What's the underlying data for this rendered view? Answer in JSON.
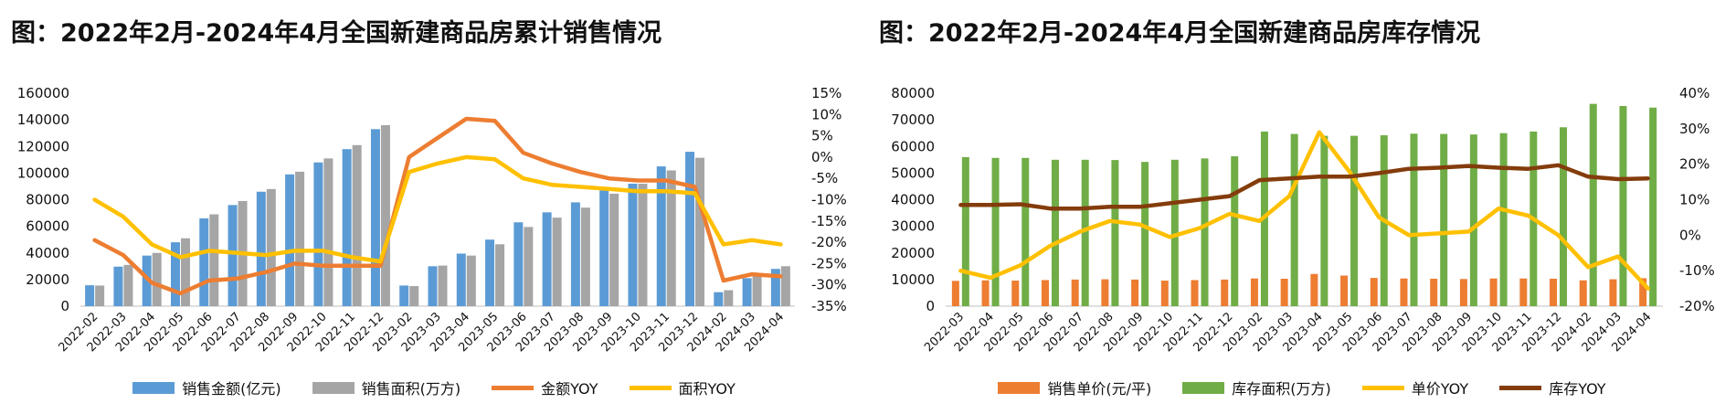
{
  "chart_data": [
    {
      "type": "bar",
      "title": "图：2022年2月-2024年4月全国新建商品房累计销售情况",
      "categories": [
        "2022-02",
        "2022-03",
        "2022-04",
        "2022-05",
        "2022-06",
        "2022-07",
        "2022-08",
        "2022-09",
        "2022-10",
        "2022-11",
        "2022-12",
        "2023-02",
        "2023-03",
        "2023-04",
        "2023-05",
        "2023-06",
        "2023-07",
        "2023-08",
        "2023-09",
        "2023-10",
        "2023-11",
        "2023-12",
        "2024-02",
        "2024-03",
        "2024-04"
      ],
      "ylim": [
        0,
        160000
      ],
      "yticks": [
        "0",
        "20000",
        "40000",
        "60000",
        "80000",
        "100000",
        "120000",
        "140000",
        "160000"
      ],
      "y2lim": [
        -35,
        15
      ],
      "y2ticks": [
        "-35%",
        "-30%",
        "-25%",
        "-20%",
        "-15%",
        "-10%",
        "-5%",
        "0%",
        "5%",
        "10%",
        "15%"
      ],
      "series": [
        {
          "name": "销售金额(亿元)",
          "kind": "bar",
          "axis": "left",
          "color": "#5B9BD5",
          "values": [
            15700,
            29700,
            38000,
            48000,
            66000,
            76000,
            86000,
            99000,
            108000,
            118000,
            133000,
            15500,
            30000,
            39500,
            50000,
            63000,
            70500,
            78000,
            87000,
            92000,
            105000,
            116000,
            10500,
            21000,
            28000
          ]
        },
        {
          "name": "销售面积(万方)",
          "kind": "bar",
          "axis": "left",
          "color": "#A5A5A5",
          "values": [
            15500,
            31000,
            40000,
            51000,
            69000,
            79000,
            88000,
            101000,
            111000,
            121000,
            136000,
            15100,
            30500,
            38000,
            46500,
            59500,
            66500,
            74000,
            84500,
            92000,
            102000,
            111500,
            12000,
            22500,
            30000
          ]
        },
        {
          "name": "金额YOY",
          "kind": "line",
          "axis": "right",
          "color": "#ED7D31",
          "values": [
            -19.5,
            -23,
            -29.5,
            -32,
            -29,
            -28.5,
            -27,
            -25,
            -25.5,
            -25.5,
            -25.5,
            0,
            4.5,
            9,
            8.5,
            1,
            -1.5,
            -3.5,
            -5,
            -5.5,
            -5.5,
            -7,
            -29,
            -27.5,
            -28
          ]
        },
        {
          "name": "面积YOY",
          "kind": "line",
          "axis": "right",
          "color": "#FFC000",
          "values": [
            -10,
            -14,
            -20.5,
            -23.5,
            -22,
            -22.5,
            -23,
            -22,
            -22,
            -23.5,
            -24.5,
            -3.5,
            -1.5,
            0,
            -0.5,
            -5,
            -6.5,
            -7,
            -7.5,
            -8,
            -8,
            -8.5,
            -20.5,
            -19.5,
            -20.5
          ]
        }
      ]
    },
    {
      "type": "bar",
      "title": "图：2022年2月-2024年4月全国新建商品房库存情况",
      "categories": [
        "2022-03",
        "2022-04",
        "2022-05",
        "2022-06",
        "2022-07",
        "2022-08",
        "2022-09",
        "2022-10",
        "2022-11",
        "2022-12",
        "2023-02",
        "2023-03",
        "2023-04",
        "2023-05",
        "2023-06",
        "2023-07",
        "2023-08",
        "2023-09",
        "2023-10",
        "2023-11",
        "2023-12",
        "2024-02",
        "2024-03",
        "2024-04"
      ],
      "ylim": [
        0,
        80000
      ],
      "yticks": [
        "0",
        "10000",
        "20000",
        "30000",
        "40000",
        "50000",
        "60000",
        "70000",
        "80000"
      ],
      "y2lim": [
        -20,
        40
      ],
      "y2ticks": [
        "-20%",
        "-10%",
        "0%",
        "10%",
        "20%",
        "30%",
        "40%"
      ],
      "series": [
        {
          "name": "销售单价(元/平)",
          "kind": "bar",
          "axis": "left",
          "color": "#ED7D31",
          "values": [
            9500,
            9700,
            9600,
            9800,
            10000,
            10100,
            10000,
            9600,
            9800,
            10000,
            10400,
            10300,
            12100,
            11500,
            10600,
            10400,
            10300,
            10200,
            10400,
            10400,
            10300,
            9700,
            10100,
            10500
          ]
        },
        {
          "name": "库存面积(万方)",
          "kind": "bar",
          "axis": "left",
          "color": "#70AD47",
          "values": [
            56000,
            55700,
            55700,
            55000,
            55000,
            54900,
            54200,
            55000,
            55500,
            56300,
            65600,
            64700,
            64000,
            64000,
            64200,
            64800,
            64700,
            64500,
            65000,
            65600,
            67200,
            76000,
            75200,
            74600
          ]
        },
        {
          "name": "单价YOY",
          "kind": "line",
          "axis": "right",
          "color": "#FFC000",
          "values": [
            -10,
            -12,
            -8.5,
            -3,
            1,
            4,
            3,
            -0.5,
            2,
            6,
            4,
            11,
            29,
            18,
            5,
            0,
            0.5,
            1,
            7.5,
            5.5,
            0,
            -9,
            -6,
            -15
          ]
        },
        {
          "name": "库存YOY",
          "kind": "line",
          "axis": "right",
          "color": "#843C0C",
          "values": [
            8.5,
            8.5,
            8.7,
            7.5,
            7.5,
            8,
            8,
            9,
            10,
            11,
            15.5,
            16,
            16.5,
            16.5,
            17.5,
            18.7,
            19,
            19.5,
            19,
            18.7,
            19.7,
            16.5,
            15.8,
            16
          ]
        }
      ]
    }
  ]
}
